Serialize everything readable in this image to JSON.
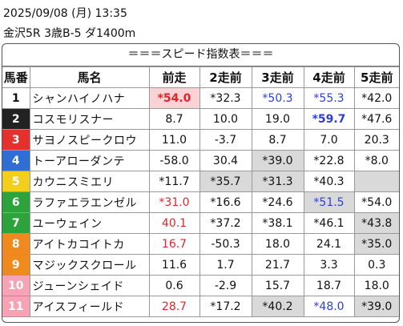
{
  "header": {
    "datetime": "2025/09/08 (月) 13:35",
    "race": "金沢5R 3歳B-5 ダ1400m"
  },
  "table": {
    "title": "＝＝＝スピード指数表＝＝＝",
    "columns": [
      "馬番",
      "馬名",
      "前走",
      "2走前",
      "3走前",
      "4走前",
      "5走前"
    ],
    "rows": [
      [
        "1",
        "シャンハイノハナ",
        "*54.0",
        "*32.3",
        "*50.3",
        "*55.3",
        "*42.0"
      ],
      [
        "2",
        "コスモリスナー",
        "8.7",
        "10.0",
        "19.0",
        "*59.7",
        "*47.6"
      ],
      [
        "3",
        "サヨノスピークロウ",
        "11.0",
        "-3.7",
        "8.7",
        "7.0",
        "20.3"
      ],
      [
        "4",
        "トーアローダンテ",
        "-58.0",
        "30.4",
        "*39.0",
        "*22.8",
        "*8.0"
      ],
      [
        "5",
        "カウニスミエリ",
        "*11.7",
        "*35.7",
        "*31.3",
        "*40.3",
        null
      ],
      [
        "6",
        "ラファエラエンゼル",
        "*31.0",
        "*16.6",
        "*24.6",
        "*51.5",
        "*54.0"
      ],
      [
        "7",
        "ユーウェイン",
        "40.1",
        "*37.2",
        "*38.1",
        "*46.1",
        "*43.8"
      ],
      [
        "8",
        "アイトカコイトカ",
        "16.7",
        "-50.3",
        "18.0",
        "24.1",
        "*35.0"
      ],
      [
        "9",
        "マジックスクロール",
        "11.6",
        "1.7",
        "21.7",
        "3.3",
        "0.3"
      ],
      [
        "10",
        "ジューンシェイド",
        "0.6",
        "-2.9",
        "15.7",
        "18.7",
        "18.0"
      ],
      [
        "11",
        "アイスフィールド",
        "28.7",
        "*17.2",
        "*40.2",
        "*48.0",
        "*39.0"
      ]
    ]
  }
}
